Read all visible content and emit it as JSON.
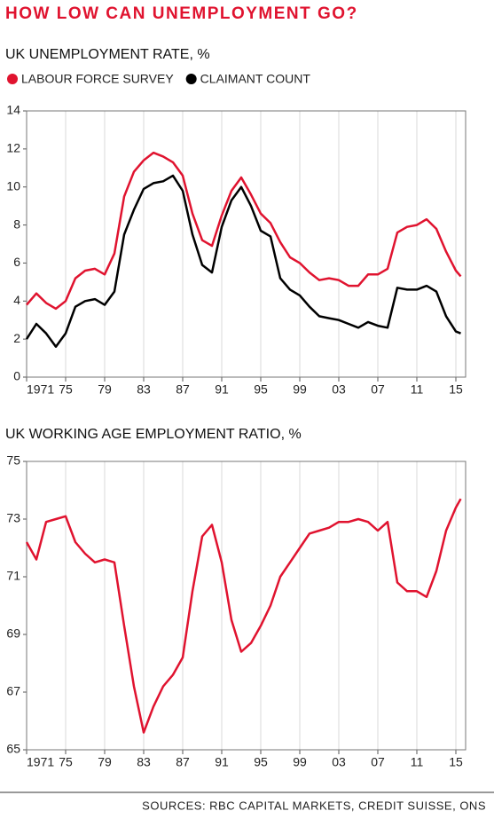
{
  "title": "HOW LOW CAN UNEMPLOYMENT GO?",
  "source": "SOURCES: RBC CAPITAL MARKETS, CREDIT SUISSE, ONS",
  "chart_data": [
    {
      "type": "line",
      "title": "UK UNEMPLOYMENT RATE, %",
      "x": [
        1971,
        1972,
        1973,
        1974,
        1975,
        1976,
        1977,
        1978,
        1979,
        1980,
        1981,
        1982,
        1983,
        1984,
        1985,
        1986,
        1987,
        1988,
        1989,
        1990,
        1991,
        1992,
        1993,
        1994,
        1995,
        1996,
        1997,
        1998,
        1999,
        2000,
        2001,
        2002,
        2003,
        2004,
        2005,
        2006,
        2007,
        2008,
        2009,
        2010,
        2011,
        2012,
        2013,
        2014,
        2015,
        2015.5
      ],
      "series": [
        {
          "name": "LABOUR FORCE SURVEY",
          "color": "#e0132f",
          "values": [
            3.8,
            4.4,
            3.9,
            3.6,
            4.0,
            5.2,
            5.6,
            5.7,
            5.4,
            6.5,
            9.5,
            10.8,
            11.4,
            11.8,
            11.6,
            11.3,
            10.6,
            8.6,
            7.2,
            6.9,
            8.5,
            9.8,
            10.5,
            9.6,
            8.6,
            8.1,
            7.1,
            6.3,
            6.0,
            5.5,
            5.1,
            5.2,
            5.1,
            4.8,
            4.8,
            5.4,
            5.4,
            5.7,
            7.6,
            7.9,
            8.0,
            8.3,
            7.8,
            6.6,
            5.6,
            5.3
          ]
        },
        {
          "name": "CLAIMANT COUNT",
          "color": "#000000",
          "values": [
            2.0,
            2.8,
            2.3,
            1.6,
            2.3,
            3.7,
            4.0,
            4.1,
            3.8,
            4.5,
            7.5,
            8.8,
            9.9,
            10.2,
            10.3,
            10.6,
            9.8,
            7.5,
            5.9,
            5.5,
            7.9,
            9.3,
            10.0,
            9.0,
            7.7,
            7.4,
            5.2,
            4.6,
            4.3,
            3.7,
            3.2,
            3.1,
            3.0,
            2.8,
            2.6,
            2.9,
            2.7,
            2.6,
            4.7,
            4.6,
            4.6,
            4.8,
            4.5,
            3.2,
            2.4,
            2.3
          ]
        }
      ],
      "xlim": [
        1971,
        2016
      ],
      "xticks": [
        1971,
        {
          "value": 1975,
          "label": "75"
        },
        {
          "value": 1979,
          "label": "79"
        },
        {
          "value": 1983,
          "label": "83"
        },
        {
          "value": 1987,
          "label": "87"
        },
        {
          "value": 1991,
          "label": "91"
        },
        {
          "value": 1995,
          "label": "95"
        },
        {
          "value": 1999,
          "label": "99"
        },
        {
          "value": 2003,
          "label": "03"
        },
        {
          "value": 2007,
          "label": "07"
        },
        {
          "value": 2011,
          "label": "11"
        },
        {
          "value": 2015,
          "label": "15"
        }
      ],
      "ylim": [
        0,
        14
      ],
      "yticks": [
        0,
        2,
        4,
        6,
        8,
        10,
        12,
        14
      ],
      "grid": "x",
      "legend": "top"
    },
    {
      "type": "line",
      "title": "UK WORKING AGE EMPLOYMENT RATIO, %",
      "x": [
        1971,
        1972,
        1973,
        1974,
        1975,
        1976,
        1977,
        1978,
        1979,
        1980,
        1981,
        1982,
        1983,
        1984,
        1985,
        1986,
        1987,
        1988,
        1989,
        1990,
        1991,
        1992,
        1993,
        1994,
        1995,
        1996,
        1997,
        1998,
        1999,
        2000,
        2001,
        2002,
        2003,
        2004,
        2005,
        2006,
        2007,
        2008,
        2009,
        2010,
        2011,
        2012,
        2013,
        2014,
        2015,
        2015.5
      ],
      "values": [
        72.2,
        71.6,
        72.9,
        73.0,
        73.1,
        72.2,
        71.8,
        71.5,
        71.6,
        71.5,
        69.3,
        67.2,
        65.6,
        66.5,
        67.2,
        67.6,
        68.2,
        70.5,
        72.4,
        72.8,
        71.5,
        69.5,
        68.4,
        68.7,
        69.3,
        70.0,
        71.0,
        71.5,
        72.0,
        72.5,
        72.6,
        72.7,
        72.9,
        72.9,
        73.0,
        72.9,
        72.6,
        72.9,
        70.8,
        70.5,
        70.5,
        70.3,
        71.2,
        72.6,
        73.4,
        73.7
      ],
      "color": "#e0132f",
      "xlim": [
        1971,
        2016
      ],
      "xticks": [
        1971,
        {
          "value": 1975,
          "label": "75"
        },
        {
          "value": 1979,
          "label": "79"
        },
        {
          "value": 1983,
          "label": "83"
        },
        {
          "value": 1987,
          "label": "87"
        },
        {
          "value": 1991,
          "label": "91"
        },
        {
          "value": 1995,
          "label": "95"
        },
        {
          "value": 1999,
          "label": "99"
        },
        {
          "value": 2003,
          "label": "03"
        },
        {
          "value": 2007,
          "label": "07"
        },
        {
          "value": 2011,
          "label": "11"
        },
        {
          "value": 2015,
          "label": "15"
        }
      ],
      "ylim": [
        65,
        75
      ],
      "yticks": [
        65,
        67,
        69,
        71,
        73,
        75
      ],
      "grid": "x"
    }
  ]
}
